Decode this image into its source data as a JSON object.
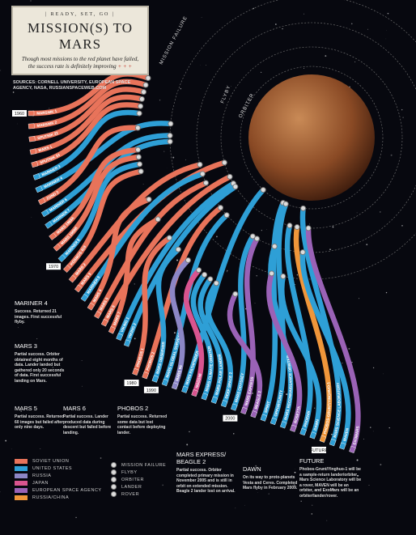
{
  "header": {
    "kicker": "| READY, SET, GO |",
    "title": "MISSION(S) TO MARS",
    "subtitle": "Though most missions to the red planet have failed, the success rate is definitely improving",
    "ornament": "+ + +"
  },
  "sources": "SOURCES: CORNELL UNIVERSITY, EUROPEAN SPACE AGENCY, NASA, RUSSIANSPACEWEB.COM",
  "outcomes": [
    "MISSION FAILURE",
    "FLYBY",
    "ORBITER",
    "LANDER",
    "ROVER"
  ],
  "agencies": [
    {
      "name": "SOVIET UNION",
      "color": "#e8735a"
    },
    {
      "name": "UNITED STATES",
      "color": "#2e9fd6"
    },
    {
      "name": "RUSSIA",
      "color": "#8c86c6"
    },
    {
      "name": "JAPAN",
      "color": "#d9548f"
    },
    {
      "name": "EUROPEAN SPACE AGENCY",
      "color": "#9a62b6"
    },
    {
      "name": "RUSSIA/CHINA",
      "color": "#f0963a"
    }
  ],
  "decades": [
    {
      "label": "1960",
      "missions": [
        {
          "name": "MARSNIK 1",
          "color": "#e8735a",
          "outcome": "MISSION FAILURE"
        },
        {
          "name": "MARSNIK 2",
          "color": "#e8735a",
          "outcome": "MISSION FAILURE"
        },
        {
          "name": "SPUTNIK 22",
          "color": "#e8735a",
          "outcome": "MISSION FAILURE"
        },
        {
          "name": "MARS 1",
          "color": "#e8735a",
          "outcome": "MISSION FAILURE"
        },
        {
          "name": "SPUTNIK 24",
          "color": "#e8735a",
          "outcome": "MISSION FAILURE"
        },
        {
          "name": "MARINER 3",
          "color": "#2e9fd6",
          "outcome": "MISSION FAILURE"
        },
        {
          "name": "MARINER 4",
          "color": "#2e9fd6",
          "outcome": "FLYBY"
        },
        {
          "name": "ZOND 2",
          "color": "#e8735a",
          "outcome": "MISSION FAILURE"
        },
        {
          "name": "MARINER 6",
          "color": "#2e9fd6",
          "outcome": "FLYBY"
        },
        {
          "name": "MARINER 7",
          "color": "#2e9fd6",
          "outcome": "FLYBY"
        },
        {
          "name": "MARS 1969A",
          "color": "#e8735a",
          "outcome": "MISSION FAILURE"
        },
        {
          "name": "MARS 1969B",
          "color": "#e8735a",
          "outcome": "MISSION FAILURE"
        }
      ]
    },
    {
      "label": "1970",
      "missions": [
        {
          "name": "MARINER 8",
          "color": "#2e9fd6",
          "outcome": "MISSION FAILURE"
        },
        {
          "name": "KOSMOS 419",
          "color": "#e8735a",
          "outcome": "MISSION FAILURE"
        },
        {
          "name": "MARS 2",
          "color": "#e8735a",
          "outcome": "ORBITER"
        },
        {
          "name": "MARS 3",
          "color": "#e8735a",
          "outcome": "LANDER"
        },
        {
          "name": "MARINER 9",
          "color": "#2e9fd6",
          "outcome": "ORBITER"
        },
        {
          "name": "MARS 4",
          "color": "#e8735a",
          "outcome": "MISSION FAILURE"
        },
        {
          "name": "MARS 5",
          "color": "#e8735a",
          "outcome": "ORBITER"
        },
        {
          "name": "MARS 6",
          "color": "#e8735a",
          "outcome": "LANDER"
        },
        {
          "name": "MARS 7",
          "color": "#e8735a",
          "outcome": "MISSION FAILURE"
        },
        {
          "name": "VIKING 1",
          "color": "#2e9fd6",
          "outcome": "LANDER"
        },
        {
          "name": "VIKING 2",
          "color": "#2e9fd6",
          "outcome": "LANDER"
        }
      ]
    },
    {
      "label": "1980",
      "missions": [
        {
          "name": "PHOBOS 1",
          "color": "#e8735a",
          "outcome": "MISSION FAILURE"
        },
        {
          "name": "PHOBOS 2",
          "color": "#e8735a",
          "outcome": "ORBITER"
        }
      ]
    },
    {
      "label": "1990",
      "missions": [
        {
          "name": "MARS OBSERVER",
          "color": "#2e9fd6",
          "outcome": "MISSION FAILURE"
        },
        {
          "name": "MARS GLOBAL SURVEYOR",
          "color": "#2e9fd6",
          "outcome": "ORBITER"
        },
        {
          "name": "MARS 96",
          "color": "#8c86c6",
          "outcome": "MISSION FAILURE"
        },
        {
          "name": "MARS PATHFINDER",
          "color": "#2e9fd6",
          "outcome": "ROVER"
        },
        {
          "name": "NOZOMI",
          "color": "#d9548f",
          "outcome": "MISSION FAILURE"
        },
        {
          "name": "MARS CLIMATE ORBITER",
          "color": "#2e9fd6",
          "outcome": "MISSION FAILURE"
        },
        {
          "name": "MARS POLAR LANDER",
          "color": "#2e9fd6",
          "outcome": "MISSION FAILURE"
        },
        {
          "name": "DEEP SPACE 2",
          "color": "#2e9fd6",
          "outcome": "MISSION FAILURE"
        }
      ]
    },
    {
      "label": "2000",
      "missions": [
        {
          "name": "MARS ODYSSEY",
          "color": "#2e9fd6",
          "outcome": "ORBITER"
        },
        {
          "name": "MARS EXPRESS",
          "color": "#9a62b6",
          "outcome": "ORBITER"
        },
        {
          "name": "BEAGLE 2",
          "color": "#9a62b6",
          "outcome": "MISSION FAILURE"
        },
        {
          "name": "SPIRIT",
          "color": "#2e9fd6",
          "outcome": "ROVER"
        },
        {
          "name": "OPPORTUNITY",
          "color": "#2e9fd6",
          "outcome": "ROVER"
        },
        {
          "name": "MARS RECONNAISSANCE ORBITER",
          "color": "#2e9fd6",
          "outcome": "ORBITER"
        },
        {
          "name": "ROSETTA",
          "color": "#9a62b6",
          "outcome": "FLYBY"
        },
        {
          "name": "PHOENIX",
          "color": "#2e9fd6",
          "outcome": "LANDER"
        },
        {
          "name": "DAWN",
          "color": "#2e9fd6",
          "outcome": "FLYBY"
        }
      ]
    },
    {
      "label": "FUTURE",
      "missions": [
        {
          "name": "PHOBOS-GRUNT/YINGHUO-1",
          "color": "#f0963a",
          "outcome": "LANDER"
        },
        {
          "name": "MARS SCIENCE LABORATORY",
          "color": "#2e9fd6",
          "outcome": "ROVER"
        },
        {
          "name": "MAVEN",
          "color": "#2e9fd6",
          "outcome": "ORBITER"
        },
        {
          "name": "EXOMARS",
          "color": "#9a62b6",
          "outcome": "LANDER"
        }
      ]
    }
  ],
  "callouts": [
    {
      "title": "MARINER 4",
      "text": "Success. Returned 21 images. First successful flyby."
    },
    {
      "title": "MARS 3",
      "text": "Partial success. Orbiter obtained eight months of data. Lander landed but gathered only 20 seconds of data. First successful landing on Mars."
    },
    {
      "title": "MARS 5",
      "text": "Partial success. Returned 60 images but failed after only nine days."
    },
    {
      "title": "MARS 6",
      "text": "Partial success. Lander produced data during descent but failed before landing."
    },
    {
      "title": "PHOBOS 2",
      "text": "Partial success. Returned some data but lost contact before deploying lander."
    },
    {
      "title": "MARS EXPRESS/ BEAGLE 2",
      "text": "Partial success. Orbiter completed primary mission in November 2005 and is still in orbit on extended mission. Beagle 2 lander lost on arrival."
    },
    {
      "title": "DAWN",
      "text": "On its way to proto-planets Vesta and Ceres. Completed Mars flyby in February 2009."
    },
    {
      "title": "FUTURE",
      "text": "Phobos-Grunt/Yinghuo-1 will be a sample-return lander/orbiter, Mars Science Laboratory will be a rover, MAVEN will be an orbiter, and ExoMars will be an orbiter/lander/rover."
    }
  ]
}
